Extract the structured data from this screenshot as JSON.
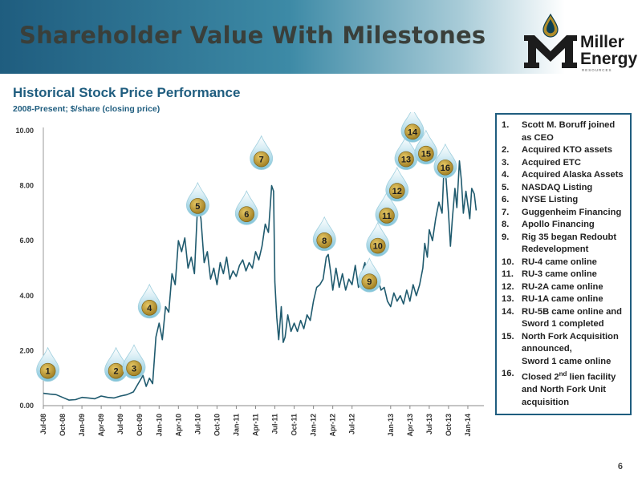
{
  "header": {
    "title": "Shareholder Value With Milestones",
    "logo_text": [
      "Miller",
      "Energy"
    ],
    "logo_sub": "RESOURCES"
  },
  "subtitle": "Historical Stock Price Performance",
  "subnote": "2008-Present; $/share (closing price)",
  "colors": {
    "header_dark": "#1f5d7f",
    "line": "#1f5a6e",
    "marker_gold": "#b08d2a",
    "marker_blue": "#7fc3d8",
    "legend_border": "#1f5d7f"
  },
  "chart_data": {
    "type": "line",
    "x_tick_labels": [
      "Jul-08",
      "Oct-08",
      "Jan-09",
      "Apr-09",
      "Jul-09",
      "Oct-09",
      "Jan-10",
      "Apr-10",
      "Jul-10",
      "Oct-10",
      "Jan-11",
      "Apr-11",
      "Jul-11",
      "Oct-11",
      "Jan-12",
      "Apr-12",
      "Jul-12",
      "Jan-13",
      "Apr-13",
      "Jul-13",
      "Oct-13",
      "Jan-14"
    ],
    "x_tick_positions": [
      0,
      3,
      6,
      9,
      12,
      15,
      18,
      21,
      24,
      27,
      30,
      33,
      36,
      39,
      42,
      45,
      48,
      54,
      57,
      60,
      63,
      66
    ],
    "y_tick_labels": [
      "0.00",
      "2.00",
      "4.00",
      "6.00",
      "8.00",
      "10.00"
    ],
    "ylim": [
      0,
      10
    ],
    "x_range_months": [
      0,
      68.5
    ],
    "series": [
      {
        "points": [
          [
            0,
            0.45
          ],
          [
            1,
            0.42
          ],
          [
            2,
            0.4
          ],
          [
            3,
            0.3
          ],
          [
            4,
            0.2
          ],
          [
            5,
            0.22
          ],
          [
            6,
            0.3
          ],
          [
            7,
            0.28
          ],
          [
            8,
            0.25
          ],
          [
            9,
            0.35
          ],
          [
            10,
            0.3
          ],
          [
            11,
            0.28
          ],
          [
            12,
            0.35
          ],
          [
            13,
            0.4
          ],
          [
            14,
            0.5
          ],
          [
            14.5,
            0.7
          ],
          [
            15,
            0.9
          ],
          [
            15.5,
            1.1
          ],
          [
            16,
            0.7
          ],
          [
            16.5,
            1.0
          ],
          [
            17,
            0.8
          ],
          [
            17.5,
            2.5
          ],
          [
            18,
            3.0
          ],
          [
            18.5,
            2.4
          ],
          [
            19,
            3.6
          ],
          [
            19.5,
            3.4
          ],
          [
            20,
            4.8
          ],
          [
            20.5,
            4.4
          ],
          [
            21,
            6.0
          ],
          [
            21.5,
            5.6
          ],
          [
            22,
            6.1
          ],
          [
            22.5,
            5.0
          ],
          [
            23,
            5.4
          ],
          [
            23.5,
            4.8
          ],
          [
            24,
            7.4
          ],
          [
            24.5,
            6.8
          ],
          [
            25,
            5.2
          ],
          [
            25.5,
            5.6
          ],
          [
            26,
            4.6
          ],
          [
            26.5,
            5.0
          ],
          [
            27,
            4.4
          ],
          [
            27.5,
            5.2
          ],
          [
            28,
            4.8
          ],
          [
            28.5,
            5.4
          ],
          [
            29,
            4.6
          ],
          [
            29.5,
            4.9
          ],
          [
            30,
            4.7
          ],
          [
            30.5,
            5.1
          ],
          [
            31,
            5.3
          ],
          [
            31.5,
            4.9
          ],
          [
            32,
            5.2
          ],
          [
            32.5,
            5.0
          ],
          [
            33,
            5.6
          ],
          [
            33.5,
            5.3
          ],
          [
            34,
            5.8
          ],
          [
            34.5,
            6.6
          ],
          [
            35,
            6.3
          ],
          [
            35.5,
            8.0
          ],
          [
            35.8,
            7.8
          ],
          [
            36,
            4.5
          ],
          [
            36.3,
            3.2
          ],
          [
            36.6,
            2.4
          ],
          [
            37,
            3.6
          ],
          [
            37.3,
            2.3
          ],
          [
            37.6,
            2.5
          ],
          [
            38,
            3.3
          ],
          [
            38.5,
            2.7
          ],
          [
            39,
            3.0
          ],
          [
            39.5,
            2.7
          ],
          [
            40,
            3.1
          ],
          [
            40.5,
            2.8
          ],
          [
            41,
            3.3
          ],
          [
            41.5,
            3.1
          ],
          [
            42,
            3.8
          ],
          [
            42.5,
            4.3
          ],
          [
            43,
            4.4
          ],
          [
            43.5,
            4.6
          ],
          [
            44,
            5.4
          ],
          [
            44.3,
            5.5
          ],
          [
            44.7,
            4.8
          ],
          [
            45,
            4.2
          ],
          [
            45.5,
            5.0
          ],
          [
            46,
            4.3
          ],
          [
            46.5,
            4.8
          ],
          [
            47,
            4.2
          ],
          [
            47.5,
            4.6
          ],
          [
            48,
            4.4
          ],
          [
            48.5,
            5.1
          ],
          [
            49,
            4.3
          ],
          [
            49.5,
            4.8
          ],
          [
            50,
            5.2
          ],
          [
            50.5,
            4.5
          ],
          [
            51,
            4.2
          ],
          [
            51.5,
            4.5
          ],
          [
            52,
            4.6
          ],
          [
            52.5,
            4.2
          ],
          [
            53,
            4.3
          ],
          [
            53.5,
            3.8
          ],
          [
            54,
            3.6
          ],
          [
            54.5,
            4.1
          ],
          [
            55,
            3.8
          ],
          [
            55.5,
            4.0
          ],
          [
            56,
            3.7
          ],
          [
            56.5,
            4.2
          ],
          [
            57,
            3.8
          ],
          [
            57.5,
            4.4
          ],
          [
            58,
            4.0
          ],
          [
            58.5,
            4.4
          ],
          [
            59,
            5.0
          ],
          [
            59.3,
            5.9
          ],
          [
            59.7,
            5.4
          ],
          [
            60,
            6.4
          ],
          [
            60.5,
            6.0
          ],
          [
            61,
            6.8
          ],
          [
            61.5,
            7.4
          ],
          [
            62,
            7.0
          ],
          [
            62.3,
            8.7
          ],
          [
            62.6,
            8.3
          ],
          [
            63,
            7.0
          ],
          [
            63.3,
            5.8
          ],
          [
            63.6,
            6.8
          ],
          [
            64,
            7.9
          ],
          [
            64.3,
            7.2
          ],
          [
            64.7,
            8.9
          ],
          [
            65,
            8.2
          ],
          [
            65.3,
            7.0
          ],
          [
            65.7,
            7.8
          ],
          [
            66,
            7.3
          ],
          [
            66.3,
            6.8
          ],
          [
            66.6,
            7.9
          ],
          [
            67,
            7.7
          ],
          [
            67.3,
            7.1
          ]
        ]
      }
    ],
    "annotations": [
      {
        "label": "1",
        "x": 0.7,
        "y": 1.35
      },
      {
        "label": "2",
        "x": 11.3,
        "y": 1.35
      },
      {
        "label": "3",
        "x": 14.1,
        "y": 1.45
      },
      {
        "label": "4",
        "x": 16.5,
        "y": 3.65
      },
      {
        "label": "5",
        "x": 24.0,
        "y": 7.35
      },
      {
        "label": "6",
        "x": 31.6,
        "y": 7.05
      },
      {
        "label": "7",
        "x": 33.9,
        "y": 9.05
      },
      {
        "label": "8",
        "x": 43.7,
        "y": 6.1
      },
      {
        "label": "9",
        "x": 50.7,
        "y": 4.6
      },
      {
        "label": "10",
        "x": 52.0,
        "y": 5.9
      },
      {
        "label": "11",
        "x": 53.4,
        "y": 7.0
      },
      {
        "label": "12",
        "x": 55.0,
        "y": 7.9
      },
      {
        "label": "13",
        "x": 56.4,
        "y": 9.05
      },
      {
        "label": "14",
        "x": 57.4,
        "y": 10.05
      },
      {
        "label": "15",
        "x": 59.5,
        "y": 9.25
      },
      {
        "label": "16",
        "x": 62.5,
        "y": 8.75
      }
    ]
  },
  "legend": [
    {
      "num": "1.",
      "text": "Scott M. Boruff joined as CEO"
    },
    {
      "num": "2.",
      "text": "Acquired KTO assets"
    },
    {
      "num": "3.",
      "text": "Acquired ETC"
    },
    {
      "num": "4.",
      "text": "Acquired Alaska Assets"
    },
    {
      "num": "5.",
      "text": "NASDAQ Listing"
    },
    {
      "num": "6.",
      "text": "NYSE Listing"
    },
    {
      "num": "7.",
      "text": "Guggenheim Financing"
    },
    {
      "num": "8.",
      "text": "Apollo Financing"
    },
    {
      "num": "9.",
      "text": "Rig 35 began Redoubt Redevelopment"
    },
    {
      "num": "10.",
      "text": "RU-4 came online"
    },
    {
      "num": "11.",
      "text": "RU-3 came online"
    },
    {
      "num": "12.",
      "text": "RU-2A came online"
    },
    {
      "num": "13.",
      "text": "RU-1A came online"
    },
    {
      "num": "14.",
      "text": "RU-5B came online and Sword 1 completed"
    },
    {
      "num": "15.",
      "text": "North Fork Acquisition announced,",
      "text2": "Sword 1 came online"
    },
    {
      "num": "16.",
      "text_pre": "Closed 2",
      "sup": "nd",
      "text_post": " lien facility and North Fork Unit acquisition"
    }
  ],
  "page_number": "6"
}
